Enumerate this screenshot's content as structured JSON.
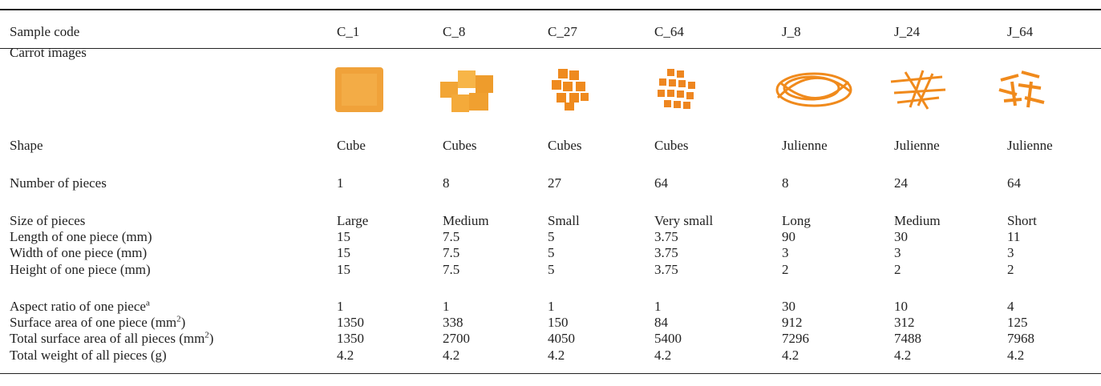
{
  "table": {
    "header": [
      "Sample code",
      "C_1",
      "C_8",
      "C_27",
      "C_64",
      "J_8",
      "J_24",
      "J_64"
    ],
    "rows": [
      {
        "label": "Carrot images"
      },
      {
        "label": "Shape",
        "values": [
          "Cube",
          "Cubes",
          "Cubes",
          "Cubes",
          "Julienne",
          "Julienne",
          "Julienne"
        ]
      },
      {
        "label": "Number of pieces",
        "values": [
          1,
          8,
          27,
          64,
          8,
          24,
          64
        ]
      },
      {
        "label": "Size of pieces",
        "values": [
          "Large",
          "Medium",
          "Small",
          "Very small",
          "Long",
          "Medium",
          "Short"
        ]
      },
      {
        "label": "Length of one piece (mm)",
        "values": [
          15,
          7.5,
          5,
          3.75,
          90,
          30,
          11
        ]
      },
      {
        "label": "Width of one piece (mm)",
        "values": [
          15,
          7.5,
          5,
          3.75,
          3,
          3,
          3
        ]
      },
      {
        "label": "Height of one piece (mm)",
        "values": [
          15,
          7.5,
          5,
          3.75,
          2,
          2,
          2
        ]
      },
      {
        "label": "Aspect ratio of one piece",
        "label_sup": "a",
        "values": [
          1,
          1,
          1,
          1,
          30,
          10,
          4
        ]
      },
      {
        "label": "Surface area of one piece (mm",
        "label_sup": "2",
        "label_end": ")",
        "values": [
          1350,
          338,
          150,
          84,
          912,
          312,
          125
        ]
      },
      {
        "label": "Total surface area of all pieces (mm",
        "label_sup": "2",
        "label_end": ")",
        "values": [
          1350,
          2700,
          4050,
          5400,
          7296,
          7488,
          7968
        ]
      },
      {
        "label": "Total weight of all pieces (g)",
        "values": [
          4.2,
          4.2,
          4.2,
          4.2,
          4.2,
          4.2,
          4.2
        ]
      }
    ]
  }
}
